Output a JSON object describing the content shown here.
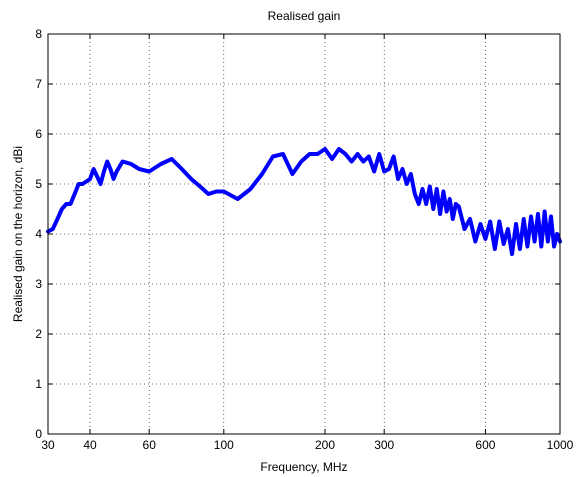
{
  "chart_data": {
    "type": "line",
    "title": "Realised gain",
    "xlabel": "Frequency, MHz",
    "ylabel": "Realised gain on the horizon, dBi",
    "xscale": "log",
    "xlim": [
      30,
      1000
    ],
    "ylim": [
      0,
      8
    ],
    "xticks": [
      30,
      40,
      60,
      100,
      200,
      300,
      600,
      1000
    ],
    "xtick_labels": [
      "30",
      "40",
      "60",
      "100",
      "200",
      "300",
      "600",
      "1000"
    ],
    "yticks": [
      0,
      1,
      2,
      3,
      4,
      5,
      6,
      7,
      8
    ],
    "ytick_labels": [
      "0",
      "1",
      "2",
      "3",
      "4",
      "5",
      "6",
      "7",
      "8"
    ],
    "grid": true,
    "color": "#0000ff",
    "series": [
      {
        "x": [
          30,
          31,
          32,
          33,
          34,
          35,
          36,
          37,
          38,
          39,
          40,
          41,
          42,
          43,
          44,
          45,
          46,
          47,
          48,
          50,
          53,
          56,
          60,
          65,
          70,
          75,
          80,
          85,
          90,
          95,
          100,
          110,
          120,
          130,
          140,
          150,
          160,
          170,
          180,
          190,
          200,
          210,
          220,
          230,
          240,
          250,
          260,
          270,
          280,
          290,
          300,
          310,
          320,
          330,
          340,
          350,
          360,
          370,
          380,
          390,
          400,
          410,
          420,
          430,
          440,
          450,
          460,
          470,
          480,
          490,
          500,
          520,
          540,
          560,
          580,
          600,
          620,
          640,
          660,
          680,
          700,
          720,
          740,
          760,
          780,
          800,
          820,
          840,
          860,
          880,
          900,
          920,
          940,
          960,
          980,
          1000
        ],
        "y": [
          4.05,
          4.1,
          4.3,
          4.5,
          4.6,
          4.6,
          4.8,
          5.0,
          5.0,
          5.05,
          5.1,
          5.3,
          5.15,
          5.0,
          5.25,
          5.45,
          5.3,
          5.1,
          5.25,
          5.45,
          5.4,
          5.3,
          5.25,
          5.4,
          5.5,
          5.3,
          5.1,
          4.95,
          4.8,
          4.85,
          4.85,
          4.7,
          4.9,
          5.2,
          5.55,
          5.6,
          5.2,
          5.45,
          5.6,
          5.6,
          5.7,
          5.5,
          5.7,
          5.6,
          5.45,
          5.6,
          5.45,
          5.55,
          5.25,
          5.6,
          5.25,
          5.3,
          5.55,
          5.1,
          5.3,
          5.0,
          5.2,
          4.8,
          4.6,
          4.9,
          4.6,
          4.95,
          4.5,
          4.9,
          4.4,
          4.85,
          4.45,
          4.7,
          4.3,
          4.6,
          4.55,
          4.1,
          4.3,
          3.85,
          4.2,
          3.9,
          4.25,
          3.7,
          4.25,
          3.8,
          4.1,
          3.6,
          4.2,
          3.7,
          4.3,
          3.75,
          4.35,
          3.85,
          4.4,
          3.75,
          4.45,
          3.85,
          4.35,
          3.75,
          4.0,
          3.85
        ]
      }
    ]
  }
}
